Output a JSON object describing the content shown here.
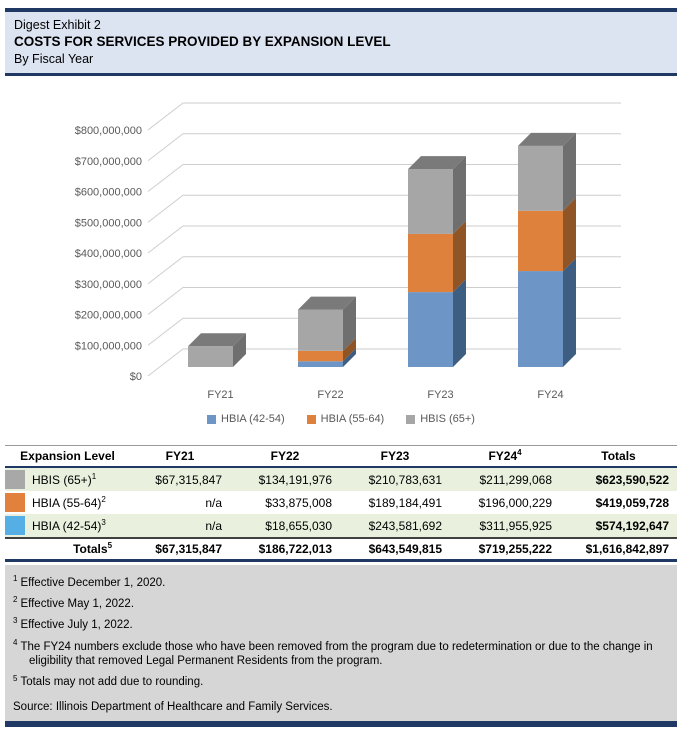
{
  "header": {
    "line1": "Digest Exhibit 2",
    "line2": "COSTS FOR SERVICES PROVIDED BY EXPANSION LEVEL",
    "line3": "By Fiscal Year"
  },
  "chart_data": {
    "type": "bar",
    "subtype": "3d-stacked-column",
    "title": "",
    "categories": [
      "FY21",
      "FY22",
      "FY23",
      "FY24"
    ],
    "series": [
      {
        "name": "HBIA (42-54)",
        "color": "#6D96C6",
        "side_color": "#3E5E81",
        "top_color": "#4A6B8E",
        "values": [
          0,
          18655030,
          243581692,
          311955925
        ]
      },
      {
        "name": "HBIA (55-64)",
        "color": "#DE813D",
        "side_color": "#8F5527",
        "top_color": "#A05E2B",
        "values": [
          0,
          33875008,
          189184491,
          196000229
        ]
      },
      {
        "name": "HBIS (65+)",
        "color": "#A6A6A6",
        "side_color": "#6F6F6F",
        "top_color": "#7A7A7A",
        "values": [
          67315847,
          134191976,
          210783631,
          211299068
        ]
      }
    ],
    "xlabel": "",
    "ylabel": "",
    "ylim": [
      0,
      800000000
    ],
    "y_tick_interval": 100000000,
    "y_ticks": [
      "$0",
      "$100,000,000",
      "$200,000,000",
      "$300,000,000",
      "$400,000,000",
      "$500,000,000",
      "$600,000,000",
      "$700,000,000",
      "$800,000,000"
    ],
    "grid": true,
    "grid_color": "#CFCECE",
    "axis_text_color": "#595959",
    "legend_position": "bottom"
  },
  "table": {
    "columns": [
      {
        "text": "Expansion Level",
        "sup": ""
      },
      {
        "text": "FY21",
        "sup": ""
      },
      {
        "text": "FY22",
        "sup": ""
      },
      {
        "text": "FY23",
        "sup": ""
      },
      {
        "text": "FY24",
        "sup": "4"
      },
      {
        "text": "Totals",
        "sup": ""
      }
    ],
    "rows": [
      {
        "swatch": "#A8A8A8",
        "label": "HBIS (65+)",
        "sup": "1",
        "fy21": "$67,315,847",
        "fy22": "$134,191,976",
        "fy23": "$210,783,631",
        "fy24": "$211,299,068",
        "total": "$623,590,522"
      },
      {
        "swatch": "#E2813E",
        "label": "HBIA (55-64)",
        "sup": "2",
        "fy21": "n/a",
        "fy22": "$33,875,008",
        "fy23": "$189,184,491",
        "fy24": "$196,000,229",
        "total": "$419,059,728"
      },
      {
        "swatch": "#55AEE4",
        "label": "HBIA (42-54)",
        "sup": "3",
        "fy21": "n/a",
        "fy22": "$18,655,030",
        "fy23": "$243,581,692",
        "fy24": "$311,955,925",
        "total": "$574,192,647"
      }
    ],
    "totals_row": {
      "label": "Totals",
      "sup": "5",
      "fy21": "$67,315,847",
      "fy22": "$186,722,013",
      "fy23": "$643,549,815",
      "fy24": "$719,255,222",
      "total": "$1,616,842,897"
    }
  },
  "footnotes": [
    {
      "sup": "1",
      "text": "Effective December 1, 2020."
    },
    {
      "sup": "2",
      "text": "Effective May 1, 2022."
    },
    {
      "sup": "3",
      "text": "Effective July 1, 2022."
    },
    {
      "sup": "4",
      "text": "The FY24 numbers exclude those who have been removed from the program due to redetermination or due to the change in eligibility that removed Legal Permanent Residents from the program."
    },
    {
      "sup": "5",
      "text": "Totals may not add due to rounding."
    }
  ],
  "source": "Source: Illinois Department of Healthcare and Family Services.",
  "colors": {
    "navy": "#1F3864",
    "title_band_bg": "#DCE3F1",
    "shaded_row_bg": "#E9F1DE",
    "footnote_bg": "#D6D6D6"
  }
}
